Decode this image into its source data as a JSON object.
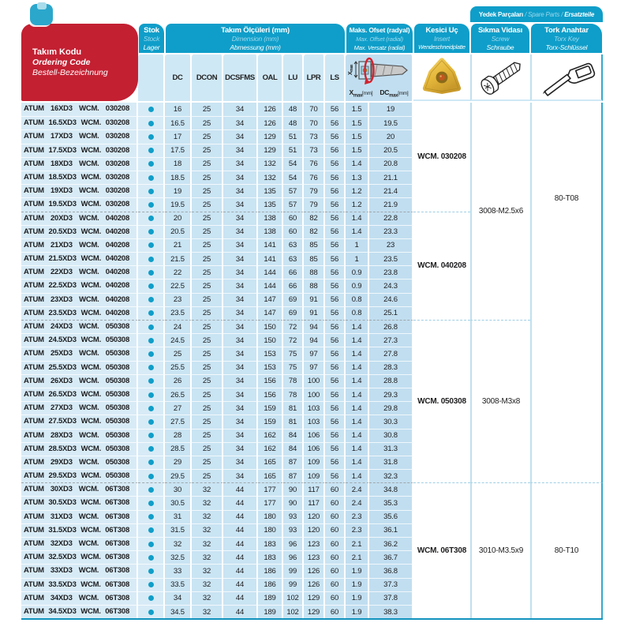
{
  "header": {
    "ordering_code": {
      "tr": "Takım Kodu",
      "en": "Ordering Code",
      "de": "Bestell-Bezeichnung"
    },
    "stock": {
      "tr": "Stok",
      "en": "Stock",
      "de": "Lager"
    },
    "dimensions": {
      "tr": "Takım Ölçüleri (mm)",
      "en": "Dimension (mm)",
      "de": "Abmessung (mm)"
    },
    "offset": {
      "tr": "Maks. Ofset (radyal)",
      "en": "Max. Offset (radial)",
      "de": "Max. Versatz (radial)",
      "x_label": "X",
      "dc_label": "DC",
      "max_sub": "max",
      "unit": "[mm]"
    },
    "insert": {
      "tr": "Kesici Uç",
      "en": "Insert",
      "de": "Wendeschneidplatte"
    },
    "spare_parts": {
      "tr": "Yedek Parçaları",
      "en": "Spare Parts",
      "de": "Ersatzteile",
      "sep": " / "
    },
    "screw": {
      "tr": "Sıkma Vidası",
      "en": "Screw",
      "de": "Schraube"
    },
    "torx": {
      "tr": "Tork Anahtar",
      "en": "Torx Key",
      "de": "Torx-Schlüssel"
    },
    "columns": [
      "DC",
      "DCON",
      "DCSFMS",
      "OAL",
      "LU",
      "LPR",
      "LS"
    ]
  },
  "rows": [
    {
      "code": "ATUM 16XD3 WCM. 030208",
      "dc": "16",
      "dcon": "25",
      "dcsfms": "34",
      "oal": "126",
      "lu": "48",
      "lpr": "70",
      "ls": "56",
      "xmax": "1.5",
      "dcmax": "19"
    },
    {
      "code": "ATUM 16.5XD3 WCM. 030208",
      "dc": "16.5",
      "dcon": "25",
      "dcsfms": "34",
      "oal": "126",
      "lu": "48",
      "lpr": "70",
      "ls": "56",
      "xmax": "1.5",
      "dcmax": "19.5"
    },
    {
      "code": "ATUM 17XD3 WCM. 030208",
      "dc": "17",
      "dcon": "25",
      "dcsfms": "34",
      "oal": "129",
      "lu": "51",
      "lpr": "73",
      "ls": "56",
      "xmax": "1.5",
      "dcmax": "20"
    },
    {
      "code": "ATUM 17.5XD3 WCM. 030208",
      "dc": "17.5",
      "dcon": "25",
      "dcsfms": "34",
      "oal": "129",
      "lu": "51",
      "lpr": "73",
      "ls": "56",
      "xmax": "1.5",
      "dcmax": "20.5"
    },
    {
      "code": "ATUM 18XD3 WCM. 030208",
      "dc": "18",
      "dcon": "25",
      "dcsfms": "34",
      "oal": "132",
      "lu": "54",
      "lpr": "76",
      "ls": "56",
      "xmax": "1.4",
      "dcmax": "20.8"
    },
    {
      "code": "ATUM 18.5XD3 WCM. 030208",
      "dc": "18.5",
      "dcon": "25",
      "dcsfms": "34",
      "oal": "132",
      "lu": "54",
      "lpr": "76",
      "ls": "56",
      "xmax": "1.3",
      "dcmax": "21.1"
    },
    {
      "code": "ATUM 19XD3 WCM. 030208",
      "dc": "19",
      "dcon": "25",
      "dcsfms": "34",
      "oal": "135",
      "lu": "57",
      "lpr": "79",
      "ls": "56",
      "xmax": "1.2",
      "dcmax": "21.4"
    },
    {
      "code": "ATUM 19.5XD3 WCM. 030208",
      "dc": "19.5",
      "dcon": "25",
      "dcsfms": "34",
      "oal": "135",
      "lu": "57",
      "lpr": "79",
      "ls": "56",
      "xmax": "1.2",
      "dcmax": "21.9"
    },
    {
      "code": "ATUM 20XD3 WCM. 040208",
      "dc": "20",
      "dcon": "25",
      "dcsfms": "34",
      "oal": "138",
      "lu": "60",
      "lpr": "82",
      "ls": "56",
      "xmax": "1.4",
      "dcmax": "22.8"
    },
    {
      "code": "ATUM 20.5XD3 WCM. 040208",
      "dc": "20.5",
      "dcon": "25",
      "dcsfms": "34",
      "oal": "138",
      "lu": "60",
      "lpr": "82",
      "ls": "56",
      "xmax": "1.4",
      "dcmax": "23.3"
    },
    {
      "code": "ATUM 21XD3 WCM. 040208",
      "dc": "21",
      "dcon": "25",
      "dcsfms": "34",
      "oal": "141",
      "lu": "63",
      "lpr": "85",
      "ls": "56",
      "xmax": "1",
      "dcmax": "23"
    },
    {
      "code": "ATUM 21.5XD3 WCM. 040208",
      "dc": "21.5",
      "dcon": "25",
      "dcsfms": "34",
      "oal": "141",
      "lu": "63",
      "lpr": "85",
      "ls": "56",
      "xmax": "1",
      "dcmax": "23.5"
    },
    {
      "code": "ATUM 22XD3 WCM. 040208",
      "dc": "22",
      "dcon": "25",
      "dcsfms": "34",
      "oal": "144",
      "lu": "66",
      "lpr": "88",
      "ls": "56",
      "xmax": "0.9",
      "dcmax": "23.8"
    },
    {
      "code": "ATUM 22.5XD3 WCM. 040208",
      "dc": "22.5",
      "dcon": "25",
      "dcsfms": "34",
      "oal": "144",
      "lu": "66",
      "lpr": "88",
      "ls": "56",
      "xmax": "0.9",
      "dcmax": "24.3"
    },
    {
      "code": "ATUM 23XD3 WCM. 040208",
      "dc": "23",
      "dcon": "25",
      "dcsfms": "34",
      "oal": "147",
      "lu": "69",
      "lpr": "91",
      "ls": "56",
      "xmax": "0.8",
      "dcmax": "24.6"
    },
    {
      "code": "ATUM 23.5XD3 WCM. 040208",
      "dc": "23.5",
      "dcon": "25",
      "dcsfms": "34",
      "oal": "147",
      "lu": "69",
      "lpr": "91",
      "ls": "56",
      "xmax": "0.8",
      "dcmax": "25.1"
    },
    {
      "code": "ATUM 24XD3 WCM. 050308",
      "dc": "24",
      "dcon": "25",
      "dcsfms": "34",
      "oal": "150",
      "lu": "72",
      "lpr": "94",
      "ls": "56",
      "xmax": "1.4",
      "dcmax": "26.8"
    },
    {
      "code": "ATUM 24.5XD3 WCM. 050308",
      "dc": "24.5",
      "dcon": "25",
      "dcsfms": "34",
      "oal": "150",
      "lu": "72",
      "lpr": "94",
      "ls": "56",
      "xmax": "1.4",
      "dcmax": "27.3"
    },
    {
      "code": "ATUM 25XD3 WCM. 050308",
      "dc": "25",
      "dcon": "25",
      "dcsfms": "34",
      "oal": "153",
      "lu": "75",
      "lpr": "97",
      "ls": "56",
      "xmax": "1.4",
      "dcmax": "27.8"
    },
    {
      "code": "ATUM 25.5XD3 WCM. 050308",
      "dc": "25.5",
      "dcon": "25",
      "dcsfms": "34",
      "oal": "153",
      "lu": "75",
      "lpr": "97",
      "ls": "56",
      "xmax": "1.4",
      "dcmax": "28.3"
    },
    {
      "code": "ATUM 26XD3 WCM. 050308",
      "dc": "26",
      "dcon": "25",
      "dcsfms": "34",
      "oal": "156",
      "lu": "78",
      "lpr": "100",
      "ls": "56",
      "xmax": "1.4",
      "dcmax": "28.8"
    },
    {
      "code": "ATUM 26.5XD3 WCM. 050308",
      "dc": "26.5",
      "dcon": "25",
      "dcsfms": "34",
      "oal": "156",
      "lu": "78",
      "lpr": "100",
      "ls": "56",
      "xmax": "1.4",
      "dcmax": "29.3"
    },
    {
      "code": "ATUM 27XD3 WCM. 050308",
      "dc": "27",
      "dcon": "25",
      "dcsfms": "34",
      "oal": "159",
      "lu": "81",
      "lpr": "103",
      "ls": "56",
      "xmax": "1.4",
      "dcmax": "29.8"
    },
    {
      "code": "ATUM 27.5XD3 WCM. 050308",
      "dc": "27.5",
      "dcon": "25",
      "dcsfms": "34",
      "oal": "159",
      "lu": "81",
      "lpr": "103",
      "ls": "56",
      "xmax": "1.4",
      "dcmax": "30.3"
    },
    {
      "code": "ATUM 28XD3 WCM. 050308",
      "dc": "28",
      "dcon": "25",
      "dcsfms": "34",
      "oal": "162",
      "lu": "84",
      "lpr": "106",
      "ls": "56",
      "xmax": "1.4",
      "dcmax": "30.8"
    },
    {
      "code": "ATUM 28.5XD3 WCM. 050308",
      "dc": "28.5",
      "dcon": "25",
      "dcsfms": "34",
      "oal": "162",
      "lu": "84",
      "lpr": "106",
      "ls": "56",
      "xmax": "1.4",
      "dcmax": "31.3"
    },
    {
      "code": "ATUM 29XD3 WCM. 050308",
      "dc": "29",
      "dcon": "25",
      "dcsfms": "34",
      "oal": "165",
      "lu": "87",
      "lpr": "109",
      "ls": "56",
      "xmax": "1.4",
      "dcmax": "31.8"
    },
    {
      "code": "ATUM 29.5XD3 WCM. 050308",
      "dc": "29.5",
      "dcon": "25",
      "dcsfms": "34",
      "oal": "165",
      "lu": "87",
      "lpr": "109",
      "ls": "56",
      "xmax": "1.4",
      "dcmax": "32.3"
    },
    {
      "code": "ATUM 30XD3 WCM. 06T308",
      "dc": "30",
      "dcon": "32",
      "dcsfms": "44",
      "oal": "177",
      "lu": "90",
      "lpr": "117",
      "ls": "60",
      "xmax": "2.4",
      "dcmax": "34.8"
    },
    {
      "code": "ATUM 30.5XD3 WCM. 06T308",
      "dc": "30.5",
      "dcon": "32",
      "dcsfms": "44",
      "oal": "177",
      "lu": "90",
      "lpr": "117",
      "ls": "60",
      "xmax": "2.4",
      "dcmax": "35.3"
    },
    {
      "code": "ATUM 31XD3 WCM. 06T308",
      "dc": "31",
      "dcon": "32",
      "dcsfms": "44",
      "oal": "180",
      "lu": "93",
      "lpr": "120",
      "ls": "60",
      "xmax": "2.3",
      "dcmax": "35.6"
    },
    {
      "code": "ATUM 31.5XD3 WCM. 06T308",
      "dc": "31.5",
      "dcon": "32",
      "dcsfms": "44",
      "oal": "180",
      "lu": "93",
      "lpr": "120",
      "ls": "60",
      "xmax": "2.3",
      "dcmax": "36.1"
    },
    {
      "code": "ATUM 32XD3 WCM. 06T308",
      "dc": "32",
      "dcon": "32",
      "dcsfms": "44",
      "oal": "183",
      "lu": "96",
      "lpr": "123",
      "ls": "60",
      "xmax": "2.1",
      "dcmax": "36.2"
    },
    {
      "code": "ATUM 32.5XD3 WCM. 06T308",
      "dc": "32.5",
      "dcon": "32",
      "dcsfms": "44",
      "oal": "183",
      "lu": "96",
      "lpr": "123",
      "ls": "60",
      "xmax": "2.1",
      "dcmax": "36.7"
    },
    {
      "code": "ATUM 33XD3 WCM. 06T308",
      "dc": "33",
      "dcon": "32",
      "dcsfms": "44",
      "oal": "186",
      "lu": "99",
      "lpr": "126",
      "ls": "60",
      "xmax": "1.9",
      "dcmax": "36.8"
    },
    {
      "code": "ATUM 33.5XD3 WCM. 06T308",
      "dc": "33.5",
      "dcon": "32",
      "dcsfms": "44",
      "oal": "186",
      "lu": "99",
      "lpr": "126",
      "ls": "60",
      "xmax": "1.9",
      "dcmax": "37.3"
    },
    {
      "code": "ATUM 34XD3 WCM. 06T308",
      "dc": "34",
      "dcon": "32",
      "dcsfms": "44",
      "oal": "189",
      "lu": "102",
      "lpr": "129",
      "ls": "60",
      "xmax": "1.9",
      "dcmax": "37.8"
    },
    {
      "code": "ATUM 34.5XD3 WCM. 06T308",
      "dc": "34.5",
      "dcon": "32",
      "dcsfms": "44",
      "oal": "189",
      "lu": "102",
      "lpr": "129",
      "ls": "60",
      "xmax": "1.9",
      "dcmax": "38.3"
    }
  ],
  "groups": {
    "insert": [
      {
        "label": "WCM. 030208",
        "from": 1,
        "to": 8
      },
      {
        "label": "WCM. 040208",
        "from": 9,
        "to": 16
      },
      {
        "label": "WCM. 050308",
        "from": 17,
        "to": 28
      },
      {
        "label": "WCM. 06T308",
        "from": 29,
        "to": 38
      }
    ],
    "screw": [
      {
        "label": "3008-M2.5x6",
        "from": 1,
        "to": 16
      },
      {
        "label": "3008-M3x8",
        "from": 17,
        "to": 28
      },
      {
        "label": "3010-M3.5x9",
        "from": 29,
        "to": 38
      }
    ],
    "torx": [
      {
        "label": "80-T08",
        "from": 1,
        "to": 28
      },
      {
        "label": "80-T10",
        "from": 29,
        "to": 38
      }
    ]
  },
  "colors": {
    "teal": "#0f9ec9",
    "red": "#c32032",
    "row_blue": "#c9e4f3",
    "stock_dot": "#0f9ec9",
    "insert_gold": "#e8b93d"
  }
}
